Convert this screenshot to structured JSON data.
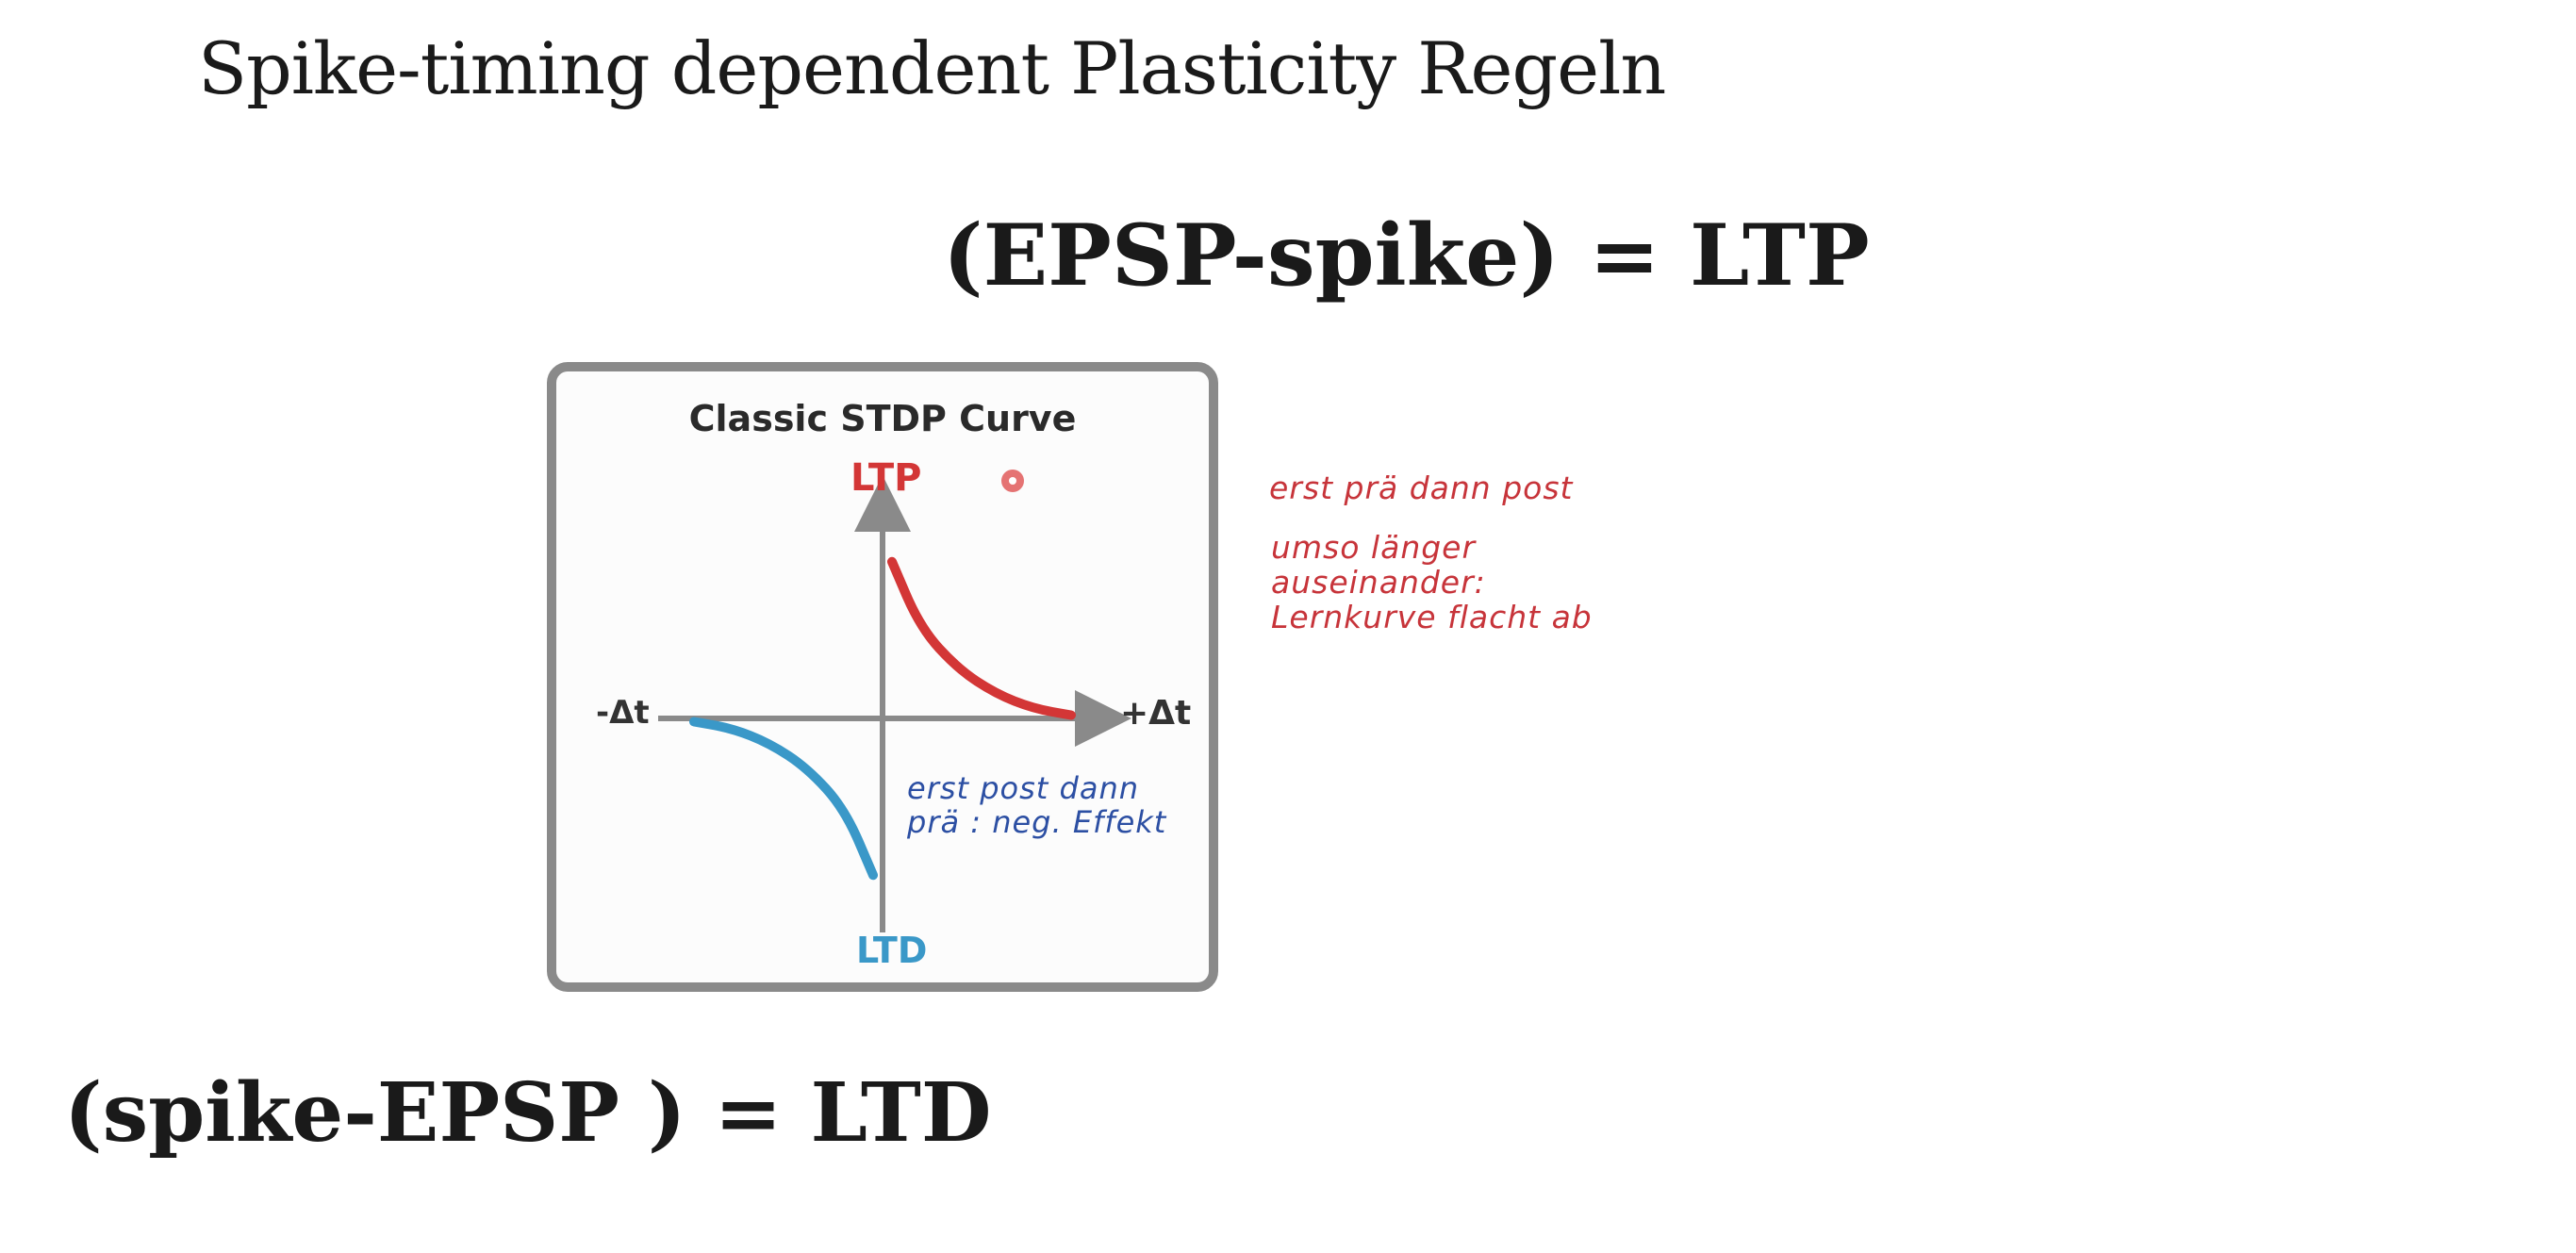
{
  "title": "Spike-timing dependent Plasticity Regeln",
  "formula_ltp": "(EPSP-spike) = LTP",
  "formula_ltd": "(spike-EPSP ) = LTD",
  "diagram": {
    "title": "Classic STDP Curve",
    "ltp_label": "LTP",
    "ltd_label": "LTD",
    "neg_axis_label": "-Δt",
    "pos_axis_label": "+Δt"
  },
  "notes": {
    "note1": "erst prä dann post",
    "note2_line1": "umso länger",
    "note2_line2": "auseinander:",
    "note2_line3": "Lernkurve flacht ab",
    "note3_line1": "erst post dann",
    "note3_line2": "prä : neg. Effekt"
  },
  "chart_data": {
    "type": "line",
    "title": "Classic STDP Curve",
    "xlabel": "Δt",
    "ylabel": "",
    "series": [
      {
        "name": "LTP",
        "color": "#d33636",
        "x": [
          0.05,
          0.2,
          0.4,
          0.6,
          0.8,
          1.0
        ],
        "y": [
          0.95,
          0.55,
          0.3,
          0.15,
          0.06,
          0.02
        ]
      },
      {
        "name": "LTD",
        "color": "#3a98c8",
        "x": [
          -1.0,
          -0.8,
          -0.6,
          -0.4,
          -0.2,
          -0.05
        ],
        "y": [
          -0.02,
          -0.06,
          -0.15,
          -0.3,
          -0.55,
          -0.95
        ]
      }
    ],
    "xlim": [
      -1.1,
      1.1
    ],
    "ylim": [
      -1.1,
      1.1
    ]
  }
}
